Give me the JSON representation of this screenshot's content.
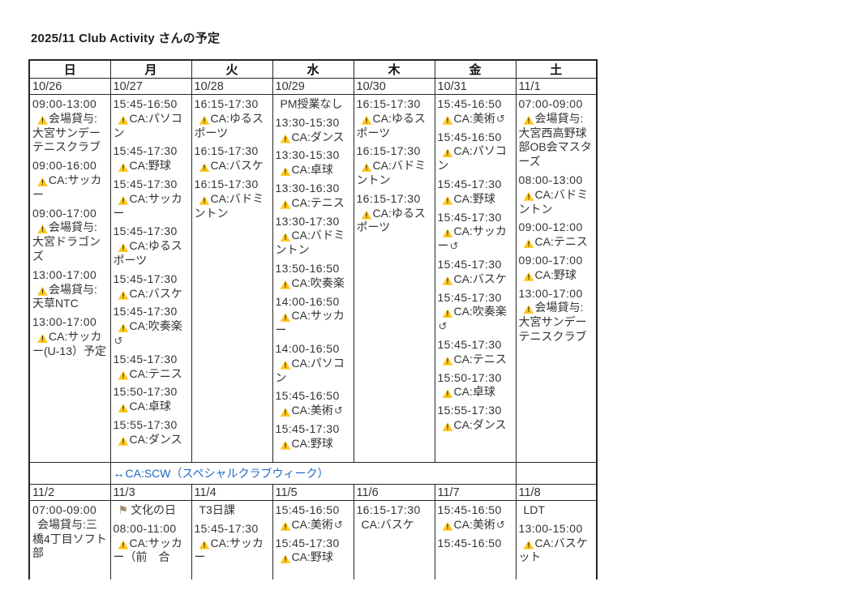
{
  "title": "2025/11 Club Activity さんの予定",
  "weekday_headers": [
    "日",
    "月",
    "火",
    "水",
    "木",
    "金",
    "土"
  ],
  "icons": {
    "warning_mark": "!",
    "repeat_glyph": "↺",
    "flag_glyph": "⚑",
    "scw_arrow_glyph": "↔"
  },
  "colors": {
    "event_link_blue": "#2268c5",
    "warning_yellow": "#ffc820",
    "flag_tan": "#a68a6e",
    "border": "#262626",
    "text": "#333333"
  },
  "scw": {
    "label": "CA:SCW（スペシャルクラブウィーク）"
  },
  "weeks": [
    {
      "dates": [
        "10/26",
        "10/27",
        "10/28",
        "10/29",
        "10/30",
        "10/31",
        "11/1"
      ],
      "days": [
        {
          "entries": [
            {
              "time": "09:00-13:00",
              "icon": "warning",
              "label": "会場貸与:大宮サンデーテニスクラブ"
            },
            {
              "time": "09:00-16:00",
              "icon": "warning",
              "label": "CA:サッカー"
            },
            {
              "time": "09:00-17:00",
              "icon": "warning",
              "label": "会場貸与:大宮ドラゴンズ"
            },
            {
              "time": "13:00-17:00",
              "icon": "warning",
              "label": "会場貸与:天草NTC"
            },
            {
              "time": "13:00-17:00",
              "icon": "warning",
              "label": "CA:サッカー(U-13）予定"
            }
          ]
        },
        {
          "entries": [
            {
              "time": "15:45-16:50",
              "icon": "warning",
              "label": "CA:パソコン"
            },
            {
              "time": "15:45-17:30",
              "icon": "warning",
              "label": "CA:野球"
            },
            {
              "time": "15:45-17:30",
              "icon": "warning",
              "label": "CA:サッカー"
            },
            {
              "time": "15:45-17:30",
              "icon": "warning",
              "label": "CA:ゆるスポーツ"
            },
            {
              "time": "15:45-17:30",
              "icon": "warning",
              "label": "CA:バスケ"
            },
            {
              "time": "15:45-17:30",
              "icon": "warning",
              "label": "CA:吹奏楽",
              "repeat": true
            },
            {
              "time": "15:45-17:30",
              "icon": "warning",
              "label": "CA:テニス"
            },
            {
              "time": "15:50-17:30",
              "icon": "warning",
              "label": "CA:卓球"
            },
            {
              "time": "15:55-17:30",
              "icon": "warning",
              "label": "CA:ダンス"
            }
          ]
        },
        {
          "entries": [
            {
              "time": "16:15-17:30",
              "icon": "warning",
              "label": "CA:ゆるスポーツ"
            },
            {
              "time": "16:15-17:30",
              "icon": "warning",
              "label": "CA:バスケ"
            },
            {
              "time": "16:15-17:30",
              "icon": "warning",
              "label": "CA:バドミントン"
            }
          ]
        },
        {
          "entries": [
            {
              "label": "PM授業なし"
            },
            {
              "time": "13:30-15:30",
              "icon": "warning",
              "label": "CA:ダンス"
            },
            {
              "time": "13:30-15:30",
              "icon": "warning",
              "label": "CA:卓球"
            },
            {
              "time": "13:30-16:30",
              "icon": "warning",
              "label": "CA:テニス"
            },
            {
              "time": "13:30-17:30",
              "icon": "warning",
              "label": "CA:バドミントン"
            },
            {
              "time": "13:50-16:50",
              "icon": "warning",
              "label": "CA:吹奏楽"
            },
            {
              "time": "14:00-16:50",
              "icon": "warning",
              "label": "CA:サッカー"
            },
            {
              "time": "14:00-16:50",
              "icon": "warning",
              "label": "CA:パソコン"
            },
            {
              "time": "15:45-16:50",
              "icon": "warning",
              "label": "CA:美術",
              "repeat": true
            },
            {
              "time": "15:45-17:30",
              "icon": "warning",
              "label": "CA:野球"
            }
          ]
        },
        {
          "entries": [
            {
              "time": "16:15-17:30",
              "icon": "warning",
              "label": "CA:ゆるスポーツ"
            },
            {
              "time": "16:15-17:30",
              "icon": "warning",
              "label": "CA:バドミントン"
            },
            {
              "time": "16:15-17:30",
              "icon": "warning",
              "label": "CA:ゆるスポーツ"
            }
          ]
        },
        {
          "entries": [
            {
              "time": "15:45-16:50",
              "icon": "warning",
              "label": "CA:美術",
              "repeat": true
            },
            {
              "time": "15:45-16:50",
              "icon": "warning",
              "label": "CA:パソコン"
            },
            {
              "time": "15:45-17:30",
              "icon": "warning",
              "label": "CA:野球"
            },
            {
              "time": "15:45-17:30",
              "icon": "warning",
              "label": "CA:サッカー",
              "repeat": true
            },
            {
              "time": "15:45-17:30",
              "icon": "warning",
              "label": "CA:バスケ"
            },
            {
              "time": "15:45-17:30",
              "icon": "warning",
              "label": "CA:吹奏楽",
              "repeat": true
            },
            {
              "time": "15:45-17:30",
              "icon": "warning",
              "label": "CA:テニス"
            },
            {
              "time": "15:50-17:30",
              "icon": "warning",
              "label": "CA:卓球"
            },
            {
              "time": "15:55-17:30",
              "icon": "warning",
              "label": "CA:ダンス"
            }
          ]
        },
        {
          "entries": [
            {
              "time": "07:00-09:00",
              "icon": "warning",
              "label": "会場貸与:大宮西高野球部OB会マスターズ"
            },
            {
              "time": "08:00-13:00",
              "icon": "warning",
              "label": "CA:バドミントン"
            },
            {
              "time": "09:00-12:00",
              "icon": "warning",
              "label": "CA:テニス"
            },
            {
              "time": "09:00-17:00",
              "icon": "warning",
              "label": "CA:野球"
            },
            {
              "time": "13:00-17:00",
              "icon": "warning",
              "label": "会場貸与:大宮サンデーテニスクラブ"
            }
          ]
        }
      ]
    },
    {
      "dates": [
        "11/2",
        "11/3",
        "11/4",
        "11/5",
        "11/6",
        "11/7",
        "11/8"
      ],
      "days": [
        {
          "entries": [
            {
              "time": "07:00-09:00",
              "label": "会場貸与:三橋4丁目ソフト部"
            }
          ]
        },
        {
          "entries": [
            {
              "icon": "flag",
              "label": "文化の日"
            },
            {
              "time": "08:00-11:00",
              "icon": "warning",
              "label": "CA:サッカー（前　合"
            }
          ]
        },
        {
          "entries": [
            {
              "label": "T3日課"
            },
            {
              "time": "15:45-17:30",
              "icon": "warning",
              "label": "CA:サッカー"
            }
          ]
        },
        {
          "entries": [
            {
              "time": "15:45-16:50",
              "icon": "warning",
              "label": "CA:美術",
              "repeat": true
            },
            {
              "time": "15:45-17:30",
              "icon": "warning",
              "label": "CA:野球"
            }
          ]
        },
        {
          "entries": [
            {
              "time": "16:15-17:30",
              "label": "CA:バスケ"
            }
          ]
        },
        {
          "entries": [
            {
              "time": "15:45-16:50",
              "icon": "warning",
              "label": "CA:美術",
              "repeat": true
            },
            {
              "time": "15:45-16:50"
            }
          ]
        },
        {
          "entries": [
            {
              "label": "LDT"
            },
            {
              "time": "13:00-15:00",
              "icon": "warning",
              "label": "CA:バスケット"
            }
          ]
        }
      ]
    }
  ]
}
